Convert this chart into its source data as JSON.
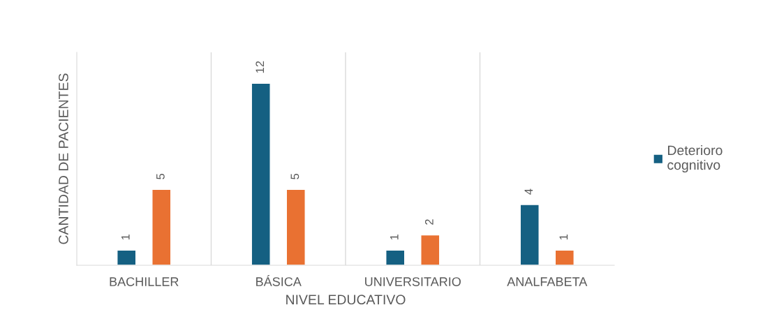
{
  "chart_data": {
    "type": "bar",
    "xlabel": "NIVEL EDUCATIVO",
    "ylabel": "CANTIDAD DE PACIENTES",
    "categories": [
      "BACHILLER",
      "BÁSICA",
      "UNIVERSITARIO",
      "ANALFABETA"
    ],
    "series": [
      {
        "name": "Deterioro cognitivo",
        "color": "#156082",
        "values": [
          1,
          12,
          1,
          4
        ]
      },
      {
        "color": "#e97132",
        "values": [
          5,
          5,
          2,
          1
        ]
      }
    ],
    "data_labels": true,
    "grid": "x",
    "legend": "right",
    "tick_labels": "x"
  }
}
